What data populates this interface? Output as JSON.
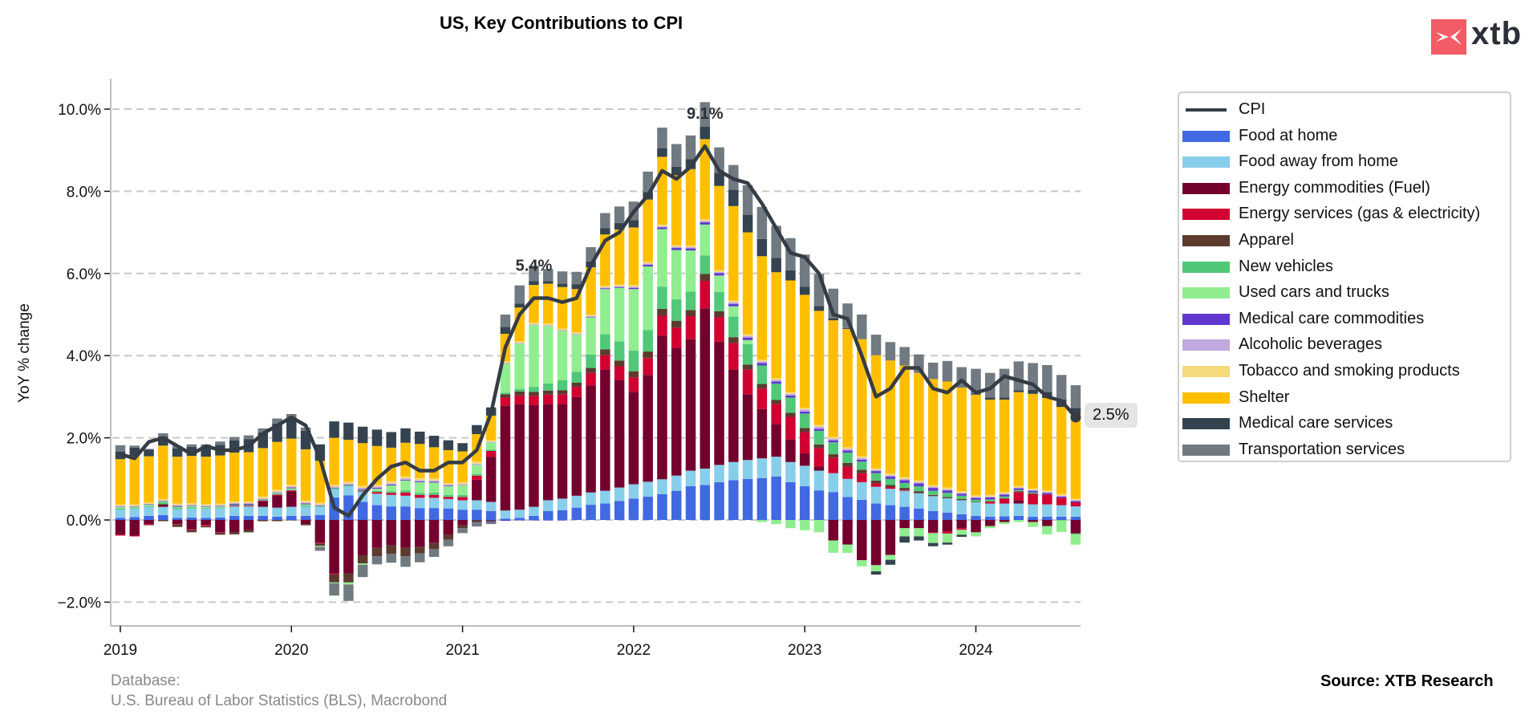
{
  "title": "US, Key Contributions to CPI",
  "logo": {
    "text": "xtb",
    "icon": "xtb-logo-icon",
    "color": "#f25c67"
  },
  "source_left": {
    "line1": "Database:",
    "line2": "U.S. Bureau of Labor Statistics (BLS), Macrobond"
  },
  "source_right": "Source: XTB Research",
  "chart_data": {
    "type": "bar",
    "stacked": true,
    "title": "US, Key Contributions to CPI",
    "xlabel": "",
    "ylabel": "YoY % change",
    "ylim": [
      -2.6,
      10.7
    ],
    "yticks": [
      -2,
      0,
      2,
      4,
      6,
      8,
      10
    ],
    "ytick_labels": [
      "−2.0%",
      "0.0%",
      "2.0%",
      "4.0%",
      "6.0%",
      "8.0%",
      "10.0%"
    ],
    "xticks": [
      "2019",
      "2020",
      "2021",
      "2022",
      "2023",
      "2024"
    ],
    "grid": "horizontal-dashed",
    "legend_position": "right",
    "start": "2019-01",
    "categories": [
      "2019-01",
      "2019-02",
      "2019-03",
      "2019-04",
      "2019-05",
      "2019-06",
      "2019-07",
      "2019-08",
      "2019-09",
      "2019-10",
      "2019-11",
      "2019-12",
      "2020-01",
      "2020-02",
      "2020-03",
      "2020-04",
      "2020-05",
      "2020-06",
      "2020-07",
      "2020-08",
      "2020-09",
      "2020-10",
      "2020-11",
      "2020-12",
      "2021-01",
      "2021-02",
      "2021-03",
      "2021-04",
      "2021-05",
      "2021-06",
      "2021-07",
      "2021-08",
      "2021-09",
      "2021-10",
      "2021-11",
      "2021-12",
      "2022-01",
      "2022-02",
      "2022-03",
      "2022-04",
      "2022-05",
      "2022-06",
      "2022-07",
      "2022-08",
      "2022-09",
      "2022-10",
      "2022-11",
      "2022-12",
      "2023-01",
      "2023-02",
      "2023-03",
      "2023-04",
      "2023-05",
      "2023-06",
      "2023-07",
      "2023-08",
      "2023-09",
      "2023-10",
      "2023-11",
      "2023-12",
      "2024-01",
      "2024-02",
      "2024-03",
      "2024-04",
      "2024-05",
      "2024-06",
      "2024-07",
      "2024-08"
    ],
    "series": [
      {
        "name": "Food at home",
        "color": "#4169e1",
        "values": [
          0.05,
          0.07,
          0.1,
          0.12,
          0.05,
          0.06,
          0.05,
          0.06,
          0.1,
          0.1,
          0.1,
          0.08,
          0.1,
          0.1,
          0.12,
          0.55,
          0.6,
          0.44,
          0.36,
          0.33,
          0.33,
          0.29,
          0.29,
          0.28,
          0.25,
          0.25,
          0.22,
          0.03,
          0.05,
          0.1,
          0.22,
          0.24,
          0.3,
          0.37,
          0.4,
          0.46,
          0.52,
          0.57,
          0.63,
          0.71,
          0.82,
          0.85,
          0.92,
          0.97,
          1.0,
          1.02,
          1.06,
          0.92,
          0.82,
          0.72,
          0.68,
          0.56,
          0.49,
          0.4,
          0.36,
          0.32,
          0.28,
          0.22,
          0.18,
          0.14,
          0.1,
          0.08,
          0.09,
          0.1,
          0.08,
          0.08,
          0.08,
          0.08
        ]
      },
      {
        "name": "Food away from home",
        "color": "#87ceeb",
        "values": [
          0.2,
          0.2,
          0.22,
          0.2,
          0.21,
          0.22,
          0.22,
          0.23,
          0.23,
          0.23,
          0.22,
          0.22,
          0.22,
          0.22,
          0.2,
          0.2,
          0.22,
          0.25,
          0.28,
          0.28,
          0.26,
          0.25,
          0.25,
          0.23,
          0.23,
          0.23,
          0.22,
          0.2,
          0.2,
          0.22,
          0.26,
          0.28,
          0.29,
          0.3,
          0.31,
          0.33,
          0.35,
          0.36,
          0.36,
          0.37,
          0.38,
          0.4,
          0.42,
          0.44,
          0.46,
          0.48,
          0.48,
          0.49,
          0.5,
          0.48,
          0.46,
          0.44,
          0.43,
          0.41,
          0.4,
          0.39,
          0.37,
          0.36,
          0.35,
          0.34,
          0.33,
          0.32,
          0.31,
          0.3,
          0.3,
          0.3,
          0.28,
          0.25
        ]
      },
      {
        "name": "Energy commodities (Fuel)",
        "color": "#74002e",
        "values": [
          -0.35,
          -0.38,
          -0.1,
          0.06,
          -0.1,
          -0.23,
          -0.12,
          -0.3,
          -0.3,
          -0.25,
          0.13,
          0.3,
          0.38,
          -0.1,
          -0.55,
          -1.3,
          -1.3,
          -0.86,
          -0.68,
          -0.62,
          -0.68,
          -0.66,
          -0.56,
          -0.36,
          -0.13,
          0.5,
          1.1,
          2.55,
          2.57,
          2.48,
          2.34,
          2.3,
          2.4,
          2.6,
          2.95,
          2.62,
          2.25,
          2.6,
          3.5,
          3.1,
          3.2,
          3.9,
          3.0,
          2.25,
          1.6,
          1.2,
          0.8,
          0.55,
          0.3,
          0.1,
          -0.5,
          -0.6,
          -0.98,
          -1.1,
          -0.85,
          -0.2,
          -0.2,
          -0.3,
          -0.28,
          -0.2,
          -0.3,
          -0.15,
          -0.05,
          0.08,
          -0.05,
          -0.15,
          0.0,
          -0.33
        ]
      },
      {
        "name": "Energy services (gas & electricity)",
        "color": "#d10030",
        "values": [
          -0.03,
          -0.02,
          -0.02,
          0.0,
          -0.01,
          -0.02,
          -0.03,
          -0.01,
          0.02,
          0.02,
          0.02,
          0.02,
          0.02,
          0.0,
          -0.02,
          -0.02,
          0.0,
          0.02,
          0.04,
          0.05,
          0.08,
          0.07,
          0.07,
          0.05,
          0.08,
          0.1,
          0.14,
          0.2,
          0.21,
          0.22,
          0.23,
          0.24,
          0.25,
          0.31,
          0.35,
          0.33,
          0.35,
          0.41,
          0.48,
          0.5,
          0.56,
          0.67,
          0.6,
          0.65,
          0.6,
          0.5,
          0.48,
          0.55,
          0.52,
          0.45,
          0.38,
          0.3,
          0.22,
          0.08,
          0.04,
          0.02,
          0.0,
          -0.02,
          -0.05,
          -0.04,
          0.0,
          0.05,
          0.12,
          0.2,
          0.25,
          0.24,
          0.18,
          0.1
        ]
      },
      {
        "name": "Apparel",
        "color": "#5c3a2e",
        "values": [
          0.0,
          0.0,
          -0.01,
          -0.03,
          -0.06,
          -0.05,
          -0.03,
          -0.05,
          -0.05,
          -0.05,
          -0.03,
          -0.03,
          -0.01,
          -0.03,
          -0.06,
          -0.2,
          -0.22,
          -0.2,
          -0.2,
          -0.2,
          -0.2,
          -0.15,
          -0.15,
          -0.12,
          -0.07,
          -0.05,
          -0.03,
          0.08,
          0.1,
          0.1,
          0.1,
          0.1,
          0.1,
          0.12,
          0.14,
          0.14,
          0.15,
          0.16,
          0.17,
          0.17,
          0.15,
          0.17,
          0.14,
          0.14,
          0.12,
          0.11,
          0.1,
          0.1,
          0.1,
          0.09,
          0.08,
          0.09,
          0.08,
          0.07,
          0.05,
          0.05,
          0.05,
          0.03,
          0.03,
          0.03,
          0.01,
          0.0,
          0.01,
          0.02,
          0.02,
          0.0,
          0.0,
          0.0
        ]
      },
      {
        "name": "New vehicles",
        "color": "#50c878",
        "values": [
          0.03,
          0.02,
          0.02,
          0.05,
          0.04,
          0.03,
          0.02,
          0.02,
          0.02,
          0.02,
          0.02,
          0.02,
          0.02,
          0.03,
          0.02,
          0.02,
          0.02,
          0.02,
          0.03,
          0.04,
          0.05,
          0.05,
          0.06,
          0.05,
          0.05,
          0.04,
          0.03,
          0.04,
          0.06,
          0.12,
          0.17,
          0.24,
          0.27,
          0.33,
          0.37,
          0.47,
          0.5,
          0.52,
          0.54,
          0.52,
          0.45,
          0.45,
          0.47,
          0.5,
          0.5,
          0.45,
          0.4,
          0.37,
          0.35,
          0.33,
          0.29,
          0.25,
          0.2,
          0.18,
          0.15,
          0.12,
          0.12,
          0.1,
          0.1,
          0.08,
          0.05,
          0.05,
          0.04,
          0.03,
          0.02,
          0.0,
          -0.01,
          -0.02
        ]
      },
      {
        "name": "Used cars and trucks",
        "color": "#90ee90",
        "values": [
          0.03,
          0.02,
          0.03,
          0.02,
          0.02,
          0.03,
          0.03,
          0.02,
          0.0,
          -0.01,
          0.0,
          0.02,
          0.03,
          0.03,
          -0.02,
          -0.02,
          -0.05,
          -0.03,
          0.05,
          0.14,
          0.24,
          0.26,
          0.24,
          0.21,
          0.23,
          0.22,
          0.17,
          0.7,
          1.1,
          1.5,
          1.4,
          1.2,
          0.9,
          0.9,
          1.1,
          1.3,
          1.5,
          1.55,
          1.4,
          1.2,
          1.0,
          0.75,
          0.4,
          0.25,
          0.1,
          -0.05,
          -0.1,
          -0.2,
          -0.25,
          -0.3,
          -0.3,
          -0.2,
          -0.15,
          -0.15,
          -0.12,
          -0.2,
          -0.2,
          -0.24,
          -0.22,
          -0.12,
          -0.1,
          -0.05,
          -0.05,
          -0.05,
          -0.12,
          -0.2,
          -0.28,
          -0.25
        ]
      },
      {
        "name": "Medical care commodities",
        "color": "#6038d0",
        "values": [
          0.01,
          0.01,
          0.01,
          0.01,
          0.02,
          0.01,
          0.01,
          0.01,
          0.02,
          0.02,
          0.01,
          0.01,
          0.02,
          0.02,
          0.01,
          0.01,
          0.01,
          0.02,
          0.02,
          0.02,
          0.02,
          0.02,
          0.02,
          0.01,
          0.0,
          -0.01,
          -0.02,
          -0.02,
          -0.01,
          -0.01,
          -0.01,
          -0.01,
          0.0,
          0.01,
          0.02,
          0.02,
          0.03,
          0.04,
          0.04,
          0.05,
          0.05,
          0.06,
          0.06,
          0.06,
          0.06,
          0.06,
          0.05,
          0.05,
          0.05,
          0.05,
          0.05,
          0.05,
          0.05,
          0.05,
          0.06,
          0.07,
          0.07,
          0.07,
          0.06,
          0.05,
          0.05,
          0.05,
          0.05,
          0.04,
          0.04,
          0.04,
          0.03,
          0.03
        ]
      },
      {
        "name": "Alcoholic beverages",
        "color": "#c0a8e0",
        "values": [
          0.02,
          0.02,
          0.01,
          0.01,
          0.02,
          0.02,
          0.02,
          0.02,
          0.02,
          0.02,
          0.02,
          0.02,
          0.02,
          0.02,
          0.02,
          0.03,
          0.03,
          0.03,
          0.03,
          0.03,
          0.03,
          0.03,
          0.03,
          0.03,
          0.03,
          0.03,
          0.02,
          0.02,
          0.02,
          0.02,
          0.02,
          0.02,
          0.02,
          0.02,
          0.02,
          0.02,
          0.03,
          0.03,
          0.03,
          0.03,
          0.03,
          0.03,
          0.03,
          0.04,
          0.04,
          0.04,
          0.04,
          0.04,
          0.05,
          0.05,
          0.04,
          0.04,
          0.04,
          0.03,
          0.03,
          0.03,
          0.03,
          0.03,
          0.03,
          0.02,
          0.02,
          0.02,
          0.02,
          0.02,
          0.02,
          0.02,
          0.02,
          0.02
        ]
      },
      {
        "name": "Tobacco and smoking products",
        "color": "#f5d97a",
        "values": [
          0.04,
          0.04,
          0.04,
          0.04,
          0.04,
          0.04,
          0.04,
          0.04,
          0.04,
          0.04,
          0.05,
          0.05,
          0.05,
          0.05,
          0.05,
          0.05,
          0.05,
          0.05,
          0.05,
          0.05,
          0.05,
          0.05,
          0.05,
          0.04,
          0.05,
          0.05,
          0.04,
          0.04,
          0.04,
          0.04,
          0.04,
          0.04,
          0.04,
          0.04,
          0.04,
          0.04,
          0.04,
          0.04,
          0.04,
          0.04,
          0.04,
          0.04,
          0.04,
          0.04,
          0.04,
          0.04,
          0.04,
          0.04,
          0.04,
          0.04,
          0.04,
          0.04,
          0.04,
          0.04,
          0.04,
          0.04,
          0.04,
          0.04,
          0.04,
          0.04,
          0.04,
          0.04,
          0.04,
          0.04,
          0.04,
          0.04,
          0.04,
          0.04
        ]
      },
      {
        "name": "Shelter",
        "color": "#ffbf00",
        "values": [
          1.1,
          1.18,
          1.12,
          1.3,
          1.14,
          1.15,
          1.15,
          1.17,
          1.19,
          1.2,
          1.18,
          1.16,
          1.12,
          1.25,
          1.02,
          1.14,
          1.02,
          1.04,
          0.94,
          0.82,
          0.82,
          0.83,
          0.76,
          0.8,
          0.75,
          0.67,
          0.6,
          0.67,
          0.82,
          0.92,
          0.97,
          1.01,
          1.05,
          1.15,
          1.25,
          1.34,
          1.4,
          1.52,
          1.65,
          1.7,
          1.86,
          1.95,
          2.05,
          2.3,
          2.48,
          2.52,
          2.58,
          2.72,
          2.75,
          2.78,
          2.84,
          2.88,
          2.85,
          2.75,
          2.75,
          2.72,
          2.62,
          2.58,
          2.58,
          2.52,
          2.45,
          2.32,
          2.25,
          2.28,
          2.3,
          2.25,
          2.12,
          2.06
        ]
      },
      {
        "name": "Medical care services",
        "color": "#34434f",
        "values": [
          0.18,
          0.2,
          0.16,
          0.22,
          0.2,
          0.22,
          0.24,
          0.26,
          0.3,
          0.32,
          0.38,
          0.45,
          0.5,
          0.45,
          0.4,
          0.4,
          0.42,
          0.4,
          0.4,
          0.38,
          0.35,
          0.3,
          0.28,
          0.24,
          0.2,
          0.22,
          0.2,
          0.17,
          0.1,
          0.09,
          0.06,
          0.08,
          0.12,
          0.14,
          0.15,
          0.16,
          0.18,
          0.18,
          0.21,
          0.21,
          0.24,
          0.3,
          0.32,
          0.4,
          0.43,
          0.42,
          0.35,
          0.25,
          0.2,
          0.12,
          0.05,
          0.02,
          0.0,
          -0.08,
          -0.12,
          -0.15,
          -0.1,
          -0.08,
          -0.05,
          -0.05,
          0.03,
          0.05,
          0.05,
          0.05,
          0.1,
          0.15,
          0.18,
          0.15
        ]
      },
      {
        "name": "Transportation services",
        "color": "#717a80",
        "values": [
          0.16,
          0.05,
          0.02,
          0.08,
          0.06,
          0.06,
          0.06,
          0.08,
          0.08,
          0.09,
          0.1,
          0.12,
          0.1,
          0.08,
          -0.1,
          -0.3,
          -0.4,
          -0.3,
          -0.2,
          -0.22,
          -0.26,
          -0.22,
          -0.19,
          -0.16,
          -0.12,
          -0.1,
          -0.05,
          0.3,
          0.44,
          0.38,
          0.3,
          0.3,
          0.3,
          0.35,
          0.37,
          0.4,
          0.45,
          0.5,
          0.5,
          0.55,
          0.58,
          0.6,
          0.62,
          0.6,
          0.72,
          0.78,
          0.78,
          0.78,
          0.78,
          0.78,
          0.72,
          0.6,
          0.6,
          0.5,
          0.45,
          0.45,
          0.45,
          0.4,
          0.5,
          0.5,
          0.6,
          0.6,
          0.7,
          0.7,
          0.65,
          0.65,
          0.6,
          0.55
        ]
      }
    ],
    "line": {
      "name": "CPI",
      "color": "#363c45",
      "values": [
        1.6,
        1.5,
        1.9,
        2.0,
        1.8,
        1.6,
        1.8,
        1.7,
        1.7,
        1.8,
        2.1,
        2.3,
        2.5,
        2.3,
        1.5,
        0.3,
        0.1,
        0.6,
        1.0,
        1.3,
        1.4,
        1.2,
        1.2,
        1.4,
        1.4,
        1.7,
        2.6,
        4.2,
        5.0,
        5.4,
        5.4,
        5.3,
        5.4,
        6.2,
        6.8,
        7.0,
        7.5,
        7.9,
        8.5,
        8.3,
        8.6,
        9.1,
        8.5,
        8.3,
        8.2,
        7.7,
        7.1,
        6.5,
        6.4,
        6.0,
        5.0,
        4.9,
        4.0,
        3.0,
        3.2,
        3.7,
        3.7,
        3.2,
        3.1,
        3.4,
        3.1,
        3.2,
        3.5,
        3.4,
        3.3,
        3.0,
        2.9,
        2.5
      ]
    },
    "annotations": [
      {
        "text": "5.4%",
        "x": "2021-06",
        "y": 5.4
      },
      {
        "text": "9.1%",
        "x": "2022-06",
        "y": 9.1
      }
    ],
    "end_label": "2.5%"
  }
}
